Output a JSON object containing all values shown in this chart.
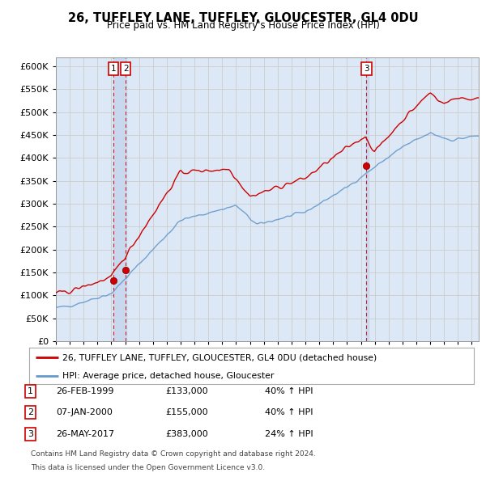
{
  "title": "26, TUFFLEY LANE, TUFFLEY, GLOUCESTER, GL4 0DU",
  "subtitle": "Price paid vs. HM Land Registry's House Price Index (HPI)",
  "legend_line1": "26, TUFFLEY LANE, TUFFLEY, GLOUCESTER, GL4 0DU (detached house)",
  "legend_line2": "HPI: Average price, detached house, Gloucester",
  "footer1": "Contains HM Land Registry data © Crown copyright and database right 2024.",
  "footer2": "This data is licensed under the Open Government Licence v3.0.",
  "transactions": [
    {
      "label": "1",
      "date": "26-FEB-1999",
      "price": 133000,
      "pct": "40%",
      "x": 1999.15
    },
    {
      "label": "2",
      "date": "07-JAN-2000",
      "price": 155000,
      "pct": "40%",
      "x": 2000.03
    },
    {
      "label": "3",
      "date": "26-MAY-2017",
      "price": 383000,
      "pct": "24%",
      "x": 2017.4
    }
  ],
  "red_color": "#cc0000",
  "blue_color": "#6699cc",
  "background_color": "#ffffff",
  "grid_color": "#cccccc",
  "plot_bg": "#dce8f5",
  "vline_bg": "#c8d8ee",
  "ylim": [
    0,
    620000
  ],
  "yticks": [
    0,
    50000,
    100000,
    150000,
    200000,
    250000,
    300000,
    350000,
    400000,
    450000,
    500000,
    550000,
    600000
  ],
  "xlim": [
    1995.0,
    2025.5
  ]
}
